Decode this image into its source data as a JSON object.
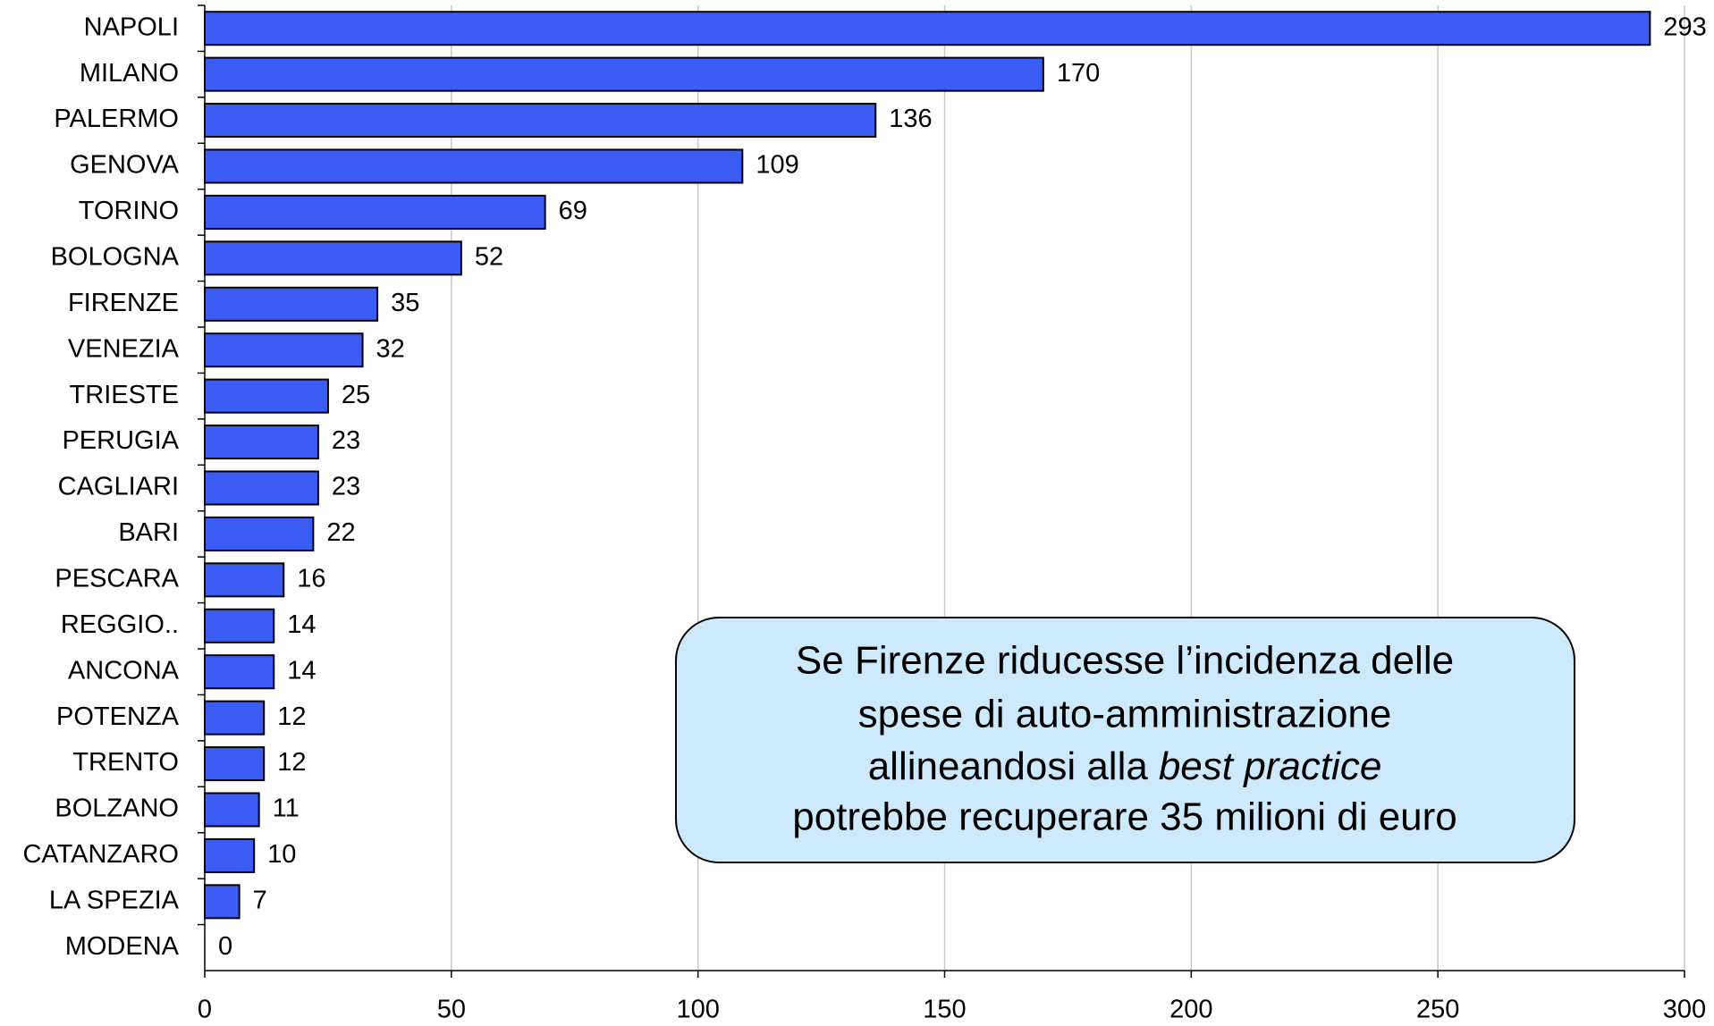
{
  "chart_data": {
    "type": "bar",
    "orientation": "horizontal",
    "categories": [
      "NAPOLI",
      "MILANO",
      "PALERMO",
      "GENOVA",
      "TORINO",
      "BOLOGNA",
      "FIRENZE",
      "VENEZIA",
      "TRIESTE",
      "PERUGIA",
      "CAGLIARI",
      "BARI",
      "PESCARA",
      "REGGIO..",
      "ANCONA",
      "POTENZA",
      "TRENTO",
      "BOLZANO",
      "CATANZARO",
      "LA SPEZIA",
      "MODENA"
    ],
    "values": [
      293,
      170,
      136,
      109,
      69,
      52,
      35,
      32,
      25,
      23,
      23,
      22,
      16,
      14,
      14,
      12,
      12,
      11,
      10,
      7,
      0
    ],
    "color": "#3b5cf5",
    "xlim": [
      0,
      300
    ],
    "xticks": [
      0,
      50,
      100,
      150,
      200,
      250,
      300
    ],
    "grid": true,
    "annotation": [
      "Se Firenze riducesse l’incidenza delle",
      "spese di auto-amministrazione",
      [
        "allineandosi alla",
        "best practice"
      ],
      "potrebbe recuperare 35 milioni di euro"
    ]
  }
}
